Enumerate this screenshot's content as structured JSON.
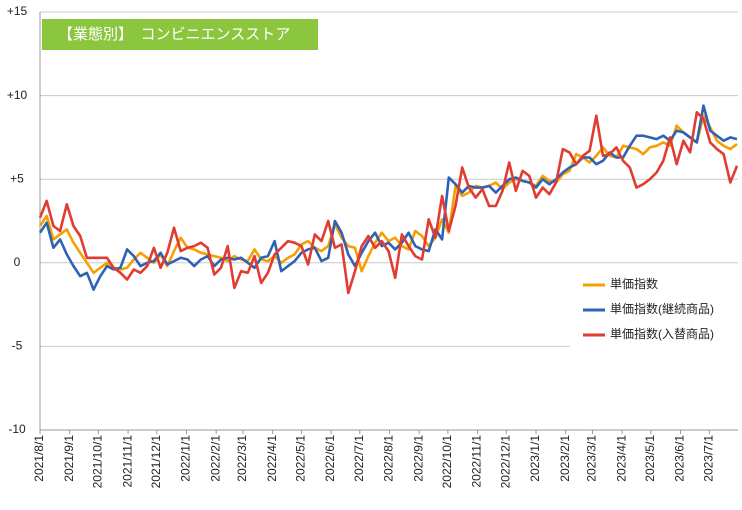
{
  "chart_data": {
    "type": "line",
    "title": "【業態別】　コンビニエンスストア",
    "x": [
      "2021/8/1",
      "2021/8/8",
      "2021/8/15",
      "2021/8/22",
      "2021/8/29",
      "2021/9/5",
      "2021/9/12",
      "2021/9/19",
      "2021/9/26",
      "2021/10/3",
      "2021/10/10",
      "2021/10/17",
      "2021/10/24",
      "2021/10/31",
      "2021/11/7",
      "2021/11/14",
      "2021/11/21",
      "2021/11/28",
      "2021/12/5",
      "2021/12/12",
      "2021/12/19",
      "2021/12/26",
      "2022/1/2",
      "2022/1/9",
      "2022/1/16",
      "2022/1/23",
      "2022/1/30",
      "2022/2/6",
      "2022/2/13",
      "2022/2/20",
      "2022/2/27",
      "2022/3/6",
      "2022/3/13",
      "2022/3/20",
      "2022/3/27",
      "2022/4/3",
      "2022/4/10",
      "2022/4/17",
      "2022/4/24",
      "2022/5/1",
      "2022/5/8",
      "2022/5/15",
      "2022/5/22",
      "2022/5/29",
      "2022/6/5",
      "2022/6/12",
      "2022/6/19",
      "2022/6/26",
      "2022/7/3",
      "2022/7/10",
      "2022/7/17",
      "2022/7/24",
      "2022/7/31",
      "2022/8/7",
      "2022/8/14",
      "2022/8/21",
      "2022/8/28",
      "2022/9/4",
      "2022/9/11",
      "2022/9/18",
      "2022/9/25",
      "2022/10/2",
      "2022/10/9",
      "2022/10/16",
      "2022/10/23",
      "2022/10/30",
      "2022/11/6",
      "2022/11/13",
      "2022/11/20",
      "2022/11/27",
      "2022/12/4",
      "2022/12/11",
      "2022/12/18",
      "2022/12/25",
      "2023/1/1",
      "2023/1/8",
      "2023/1/15",
      "2023/1/22",
      "2023/1/29",
      "2023/2/5",
      "2023/2/12",
      "2023/2/19",
      "2023/2/26",
      "2023/3/5",
      "2023/3/12",
      "2023/3/19",
      "2023/3/26",
      "2023/4/2",
      "2023/4/9",
      "2023/4/16",
      "2023/4/23",
      "2023/4/30",
      "2023/5/7",
      "2023/5/14",
      "2023/5/21",
      "2023/5/28",
      "2023/6/4",
      "2023/6/11",
      "2023/6/18",
      "2023/6/25",
      "2023/7/2",
      "2023/7/9",
      "2023/7/16",
      "2023/7/23",
      "2023/7/30"
    ],
    "series": [
      {
        "name": "単価指数",
        "color": "#f5a000",
        "values": [
          2.2,
          2.8,
          1.4,
          1.7,
          2.0,
          1.2,
          0.6,
          0.0,
          -0.6,
          -0.3,
          0.0,
          -0.3,
          -0.4,
          -0.3,
          0.2,
          0.6,
          0.3,
          0.0,
          0.5,
          -0.2,
          0.7,
          1.5,
          0.9,
          0.8,
          0.6,
          0.5,
          0.4,
          0.3,
          0.1,
          0.4,
          0.2,
          0.1,
          0.8,
          0.2,
          0.1,
          0.4,
          0.0,
          0.3,
          0.5,
          1.1,
          1.3,
          0.9,
          0.7,
          1.0,
          2.3,
          1.5,
          1.0,
          0.9,
          -0.5,
          0.4,
          1.2,
          1.8,
          1.3,
          1.5,
          1.0,
          0.8,
          1.9,
          1.6,
          1.0,
          1.5,
          2.6,
          1.8,
          4.6,
          4.0,
          4.2,
          4.6,
          4.5,
          4.6,
          4.8,
          4.4,
          4.8,
          5.0,
          4.9,
          4.8,
          4.6,
          5.2,
          4.9,
          4.8,
          5.3,
          5.5,
          6.5,
          6.3,
          6.0,
          6.4,
          6.9,
          6.4,
          6.3,
          7.0,
          6.9,
          6.8,
          6.5,
          6.9,
          7.0,
          7.2,
          7.0,
          8.2,
          7.8,
          7.5,
          7.2,
          8.8,
          8.1,
          7.3,
          7.0,
          6.8,
          7.1
        ]
      },
      {
        "name": "単価指数(継続商品)",
        "color": "#2e62b4",
        "values": [
          1.8,
          2.4,
          0.9,
          1.4,
          0.5,
          -0.2,
          -0.8,
          -0.6,
          -1.6,
          -0.8,
          -0.2,
          -0.4,
          -0.3,
          0.8,
          0.4,
          -0.2,
          0.0,
          0.1,
          0.6,
          -0.1,
          0.1,
          0.3,
          0.2,
          -0.2,
          0.2,
          0.4,
          -0.2,
          0.2,
          0.3,
          0.2,
          0.3,
          0.0,
          -0.3,
          0.3,
          0.4,
          1.3,
          -0.5,
          -0.2,
          0.1,
          0.6,
          0.8,
          0.9,
          0.1,
          0.3,
          2.5,
          1.8,
          0.5,
          -0.2,
          0.6,
          1.3,
          1.8,
          1.0,
          1.2,
          0.8,
          1.2,
          1.8,
          1.0,
          0.8,
          0.7,
          2.0,
          1.4,
          5.1,
          4.7,
          4.2,
          4.6,
          4.5,
          4.5,
          4.6,
          4.2,
          4.6,
          5.0,
          5.1,
          4.9,
          4.8,
          4.5,
          5.0,
          4.7,
          5.0,
          5.4,
          5.7,
          5.9,
          6.3,
          6.3,
          5.9,
          6.1,
          6.6,
          6.3,
          6.3,
          7.0,
          7.6,
          7.6,
          7.5,
          7.4,
          7.6,
          7.3,
          7.9,
          7.8,
          7.5,
          7.2,
          9.4,
          7.9,
          7.6,
          7.3,
          7.5,
          7.4
        ]
      },
      {
        "name": "単価指数(入替商品)",
        "color": "#e03c31",
        "values": [
          2.7,
          3.7,
          2.2,
          1.9,
          3.5,
          2.2,
          1.6,
          0.3,
          0.3,
          0.3,
          0.3,
          -0.3,
          -0.6,
          -1.0,
          -0.4,
          -0.6,
          -0.2,
          0.9,
          -0.3,
          0.6,
          2.1,
          0.7,
          0.9,
          1.0,
          1.2,
          0.9,
          -0.7,
          -0.3,
          1.0,
          -1.5,
          -0.5,
          -0.6,
          0.4,
          -1.2,
          -0.6,
          0.5,
          0.9,
          1.3,
          1.2,
          1.0,
          -0.1,
          1.7,
          1.3,
          2.5,
          0.9,
          1.1,
          -1.8,
          -0.5,
          1.0,
          1.6,
          0.9,
          1.3,
          0.7,
          -0.9,
          1.7,
          1.0,
          0.4,
          0.2,
          2.6,
          1.5,
          4.0,
          1.9,
          3.4,
          5.7,
          4.5,
          3.9,
          4.4,
          3.4,
          3.4,
          4.3,
          6.0,
          4.3,
          5.5,
          5.2,
          3.9,
          4.5,
          4.1,
          4.8,
          6.8,
          6.6,
          5.9,
          6.4,
          6.7,
          8.8,
          6.4,
          6.5,
          6.9,
          6.1,
          5.7,
          4.5,
          4.7,
          5.0,
          5.4,
          6.1,
          7.5,
          5.9,
          7.3,
          6.6,
          9.0,
          8.6,
          7.2,
          6.8,
          6.5,
          4.8,
          5.8
        ]
      }
    ],
    "xlim": [
      "2021/8/1",
      "2023/7/31"
    ],
    "xticks": [
      "2021/8/1",
      "2021/9/1",
      "2021/10/1",
      "2021/11/1",
      "2021/12/1",
      "2022/1/1",
      "2022/2/1",
      "2022/3/1",
      "2022/4/1",
      "2022/5/1",
      "2022/6/1",
      "2022/7/1",
      "2022/8/1",
      "2022/9/1",
      "2022/10/1",
      "2022/11/1",
      "2022/12/1",
      "2023/1/1",
      "2023/2/1",
      "2023/3/1",
      "2023/4/1",
      "2023/5/1",
      "2023/6/1",
      "2023/7/1"
    ],
    "ylim": [
      -10,
      15
    ],
    "yticks": [
      -10,
      -5,
      0,
      {
        "value": 5,
        "label": "+5"
      },
      {
        "value": 10,
        "label": "+10"
      },
      {
        "value": 15,
        "label": "+15"
      }
    ],
    "grid": true,
    "legend": "right"
  }
}
